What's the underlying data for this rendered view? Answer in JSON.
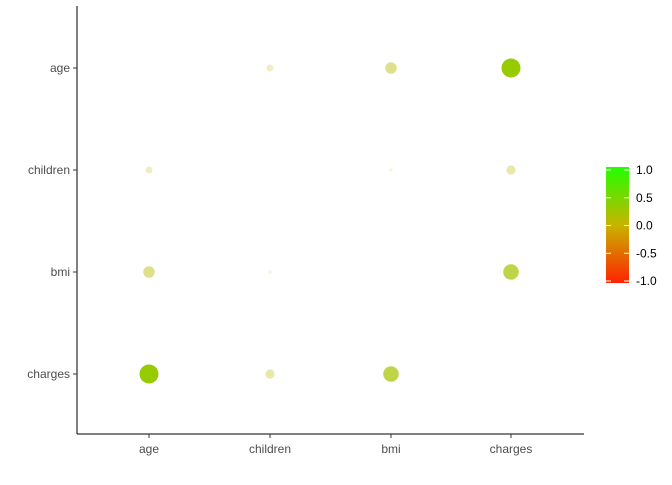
{
  "chart_data": {
    "type": "scatter",
    "subtype": "correlation-matrix",
    "title": "",
    "xlabel": "",
    "ylabel": "",
    "x_categories": [
      "age",
      "children",
      "bmi",
      "charges"
    ],
    "y_categories": [
      "age",
      "children",
      "bmi",
      "charges"
    ],
    "grid": false,
    "legend_placement": "right",
    "legend": {
      "type": "colorbar",
      "limits": [
        -1,
        1
      ],
      "ticks": [
        1.0,
        0.5,
        0.0,
        -0.5,
        -1.0
      ],
      "tick_labels": [
        "1.0",
        "0.5",
        "0.0",
        "-0.5",
        "-1.0"
      ],
      "low_color": "#ff2200",
      "mid_color": "#c8b400",
      "high_color": "#22ff00"
    },
    "cells": [
      {
        "x": "children",
        "y": "age",
        "value": 0.04
      },
      {
        "x": "bmi",
        "y": "age",
        "value": 0.11
      },
      {
        "x": "charges",
        "y": "age",
        "value": 0.3
      },
      {
        "x": "age",
        "y": "children",
        "value": 0.04
      },
      {
        "x": "bmi",
        "y": "children",
        "value": 0.01
      },
      {
        "x": "charges",
        "y": "children",
        "value": 0.07
      },
      {
        "x": "age",
        "y": "bmi",
        "value": 0.11
      },
      {
        "x": "children",
        "y": "bmi",
        "value": 0.01
      },
      {
        "x": "charges",
        "y": "bmi",
        "value": 0.2
      },
      {
        "x": "age",
        "y": "charges",
        "value": 0.3
      },
      {
        "x": "children",
        "y": "charges",
        "value": 0.07
      },
      {
        "x": "bmi",
        "y": "charges",
        "value": 0.2
      }
    ]
  }
}
